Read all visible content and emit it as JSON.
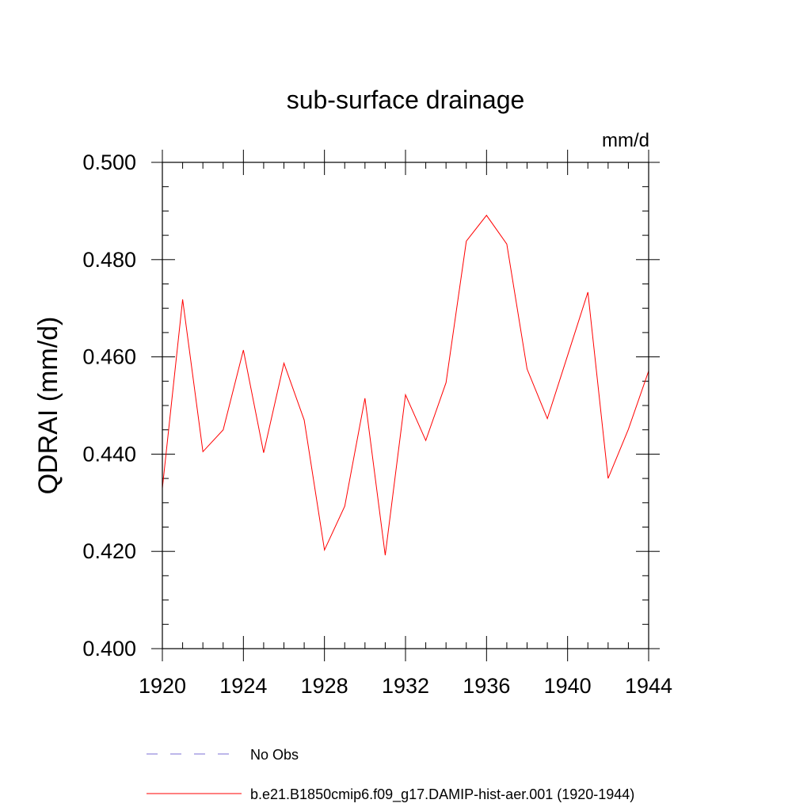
{
  "chart_data": {
    "type": "line",
    "title": "sub-surface drainage",
    "units_label": "mm/d",
    "ylabel": "QDRAI  (mm/d)",
    "xlabel": "",
    "xlim": [
      1920,
      1944
    ],
    "ylim": [
      0.4,
      0.5
    ],
    "x_ticks": [
      1920,
      1924,
      1928,
      1932,
      1936,
      1940,
      1944
    ],
    "y_ticks": [
      0.4,
      0.42,
      0.44,
      0.46,
      0.48,
      0.5
    ],
    "x_tick_labels": [
      "1920",
      "1924",
      "1928",
      "1932",
      "1936",
      "1940",
      "1944"
    ],
    "y_tick_labels": [
      "0.400",
      "0.420",
      "0.440",
      "0.460",
      "0.480",
      "0.500"
    ],
    "grid": false,
    "legend_position": "bottom",
    "x": [
      1920,
      1921,
      1922,
      1923,
      1924,
      1925,
      1926,
      1927,
      1928,
      1929,
      1930,
      1931,
      1932,
      1933,
      1934,
      1935,
      1936,
      1937,
      1938,
      1939,
      1940,
      1941,
      1942,
      1943,
      1944
    ],
    "series": [
      {
        "name": "b.e21.B1850cmip6.f09_g17.DAMIP-hist-aer.001 (1920-1944)",
        "color": "#ff0000",
        "style": "solid",
        "values": [
          0.433,
          0.4718,
          0.4405,
          0.445,
          0.4614,
          0.4403,
          0.4587,
          0.447,
          0.4203,
          0.4293,
          0.4515,
          0.4192,
          0.4522,
          0.4428,
          0.4547,
          0.4838,
          0.4891,
          0.4832,
          0.4575,
          0.4473,
          0.4603,
          0.4733,
          0.435,
          0.4451,
          0.4571
        ]
      }
    ],
    "legend_entries": [
      {
        "label": "No Obs",
        "color": "#7b6fd6",
        "style": "dashed"
      },
      {
        "label": "b.e21.B1850cmip6.f09_g17.DAMIP-hist-aer.001 (1920-1944)",
        "color": "#ff0000",
        "style": "solid"
      }
    ]
  }
}
